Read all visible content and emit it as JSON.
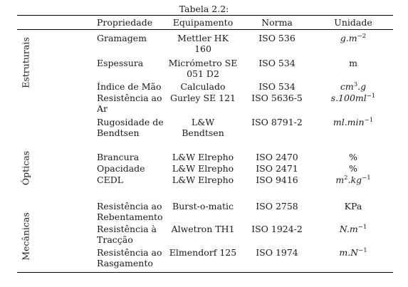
{
  "caption": "Tabela 2.2:",
  "headers": {
    "propriedade": "Propriedade",
    "equipamento": "Equipamento",
    "norma": "Norma",
    "unidade": "Unidade"
  },
  "groups": {
    "estruturais": "Estruturais",
    "opticas": "Ópticas",
    "mecanicas": "Mecânicas"
  },
  "rows": [
    {
      "prop": [
        "Gramagem"
      ],
      "equip": [
        "Mettler HK",
        "160"
      ],
      "norma": "ISO 536",
      "unit": "g.m",
      "unit_sup": "−2"
    },
    {
      "prop": [
        "Espessura"
      ],
      "equip": [
        "Micrómetro SE",
        "051 D2"
      ],
      "norma": "ISO 534",
      "unit": "m",
      "unit_sup": ""
    },
    {
      "prop": [
        "Índice de Mão"
      ],
      "equip": [
        "Calculado"
      ],
      "norma": "ISO 534",
      "unit_parts": [
        "cm",
        "3",
        ".g"
      ]
    },
    {
      "prop": [
        "Resistência ao",
        "Ar"
      ],
      "equip": [
        "Gurley SE 121"
      ],
      "norma": "ISO 5636-5",
      "unit": "s.100ml",
      "unit_sup": "−1"
    },
    {
      "prop": [
        "Rugosidade de",
        "Bendtsen"
      ],
      "equip": [
        "L&W",
        "Bendtsen"
      ],
      "norma": "ISO 8791-2",
      "unit": "ml.min",
      "unit_sup": "−1"
    },
    {
      "prop": [
        "Brancura"
      ],
      "equip": [
        "L&W Elrepho"
      ],
      "norma": "ISO 2470",
      "unit": "%",
      "unit_sup": ""
    },
    {
      "prop": [
        "Opacidade"
      ],
      "equip": [
        "L&W Elrepho"
      ],
      "norma": "ISO 2471",
      "unit": "%",
      "unit_sup": ""
    },
    {
      "prop": [
        "CEDL"
      ],
      "equip": [
        "L&W Elrepho"
      ],
      "norma": "ISO 9416",
      "unit_parts": [
        "m",
        "2",
        ".kg",
        "−1"
      ]
    },
    {
      "prop": [
        "Resistência ao",
        "Rebentamento"
      ],
      "equip": [
        "Burst-o-matic"
      ],
      "norma": "ISO 2758",
      "unit": "KPa",
      "unit_sup": ""
    },
    {
      "prop": [
        "Resistência à",
        "Tracção"
      ],
      "equip": [
        "Alwetron TH1"
      ],
      "norma": "ISO 1924-2",
      "unit": "N.m",
      "unit_sup": "−1"
    },
    {
      "prop": [
        "Resistência ao",
        "Rasgamento"
      ],
      "equip": [
        "Elmendorf 125"
      ],
      "norma": "ISO 1974",
      "unit": "m.N",
      "unit_sup": "−1"
    }
  ]
}
